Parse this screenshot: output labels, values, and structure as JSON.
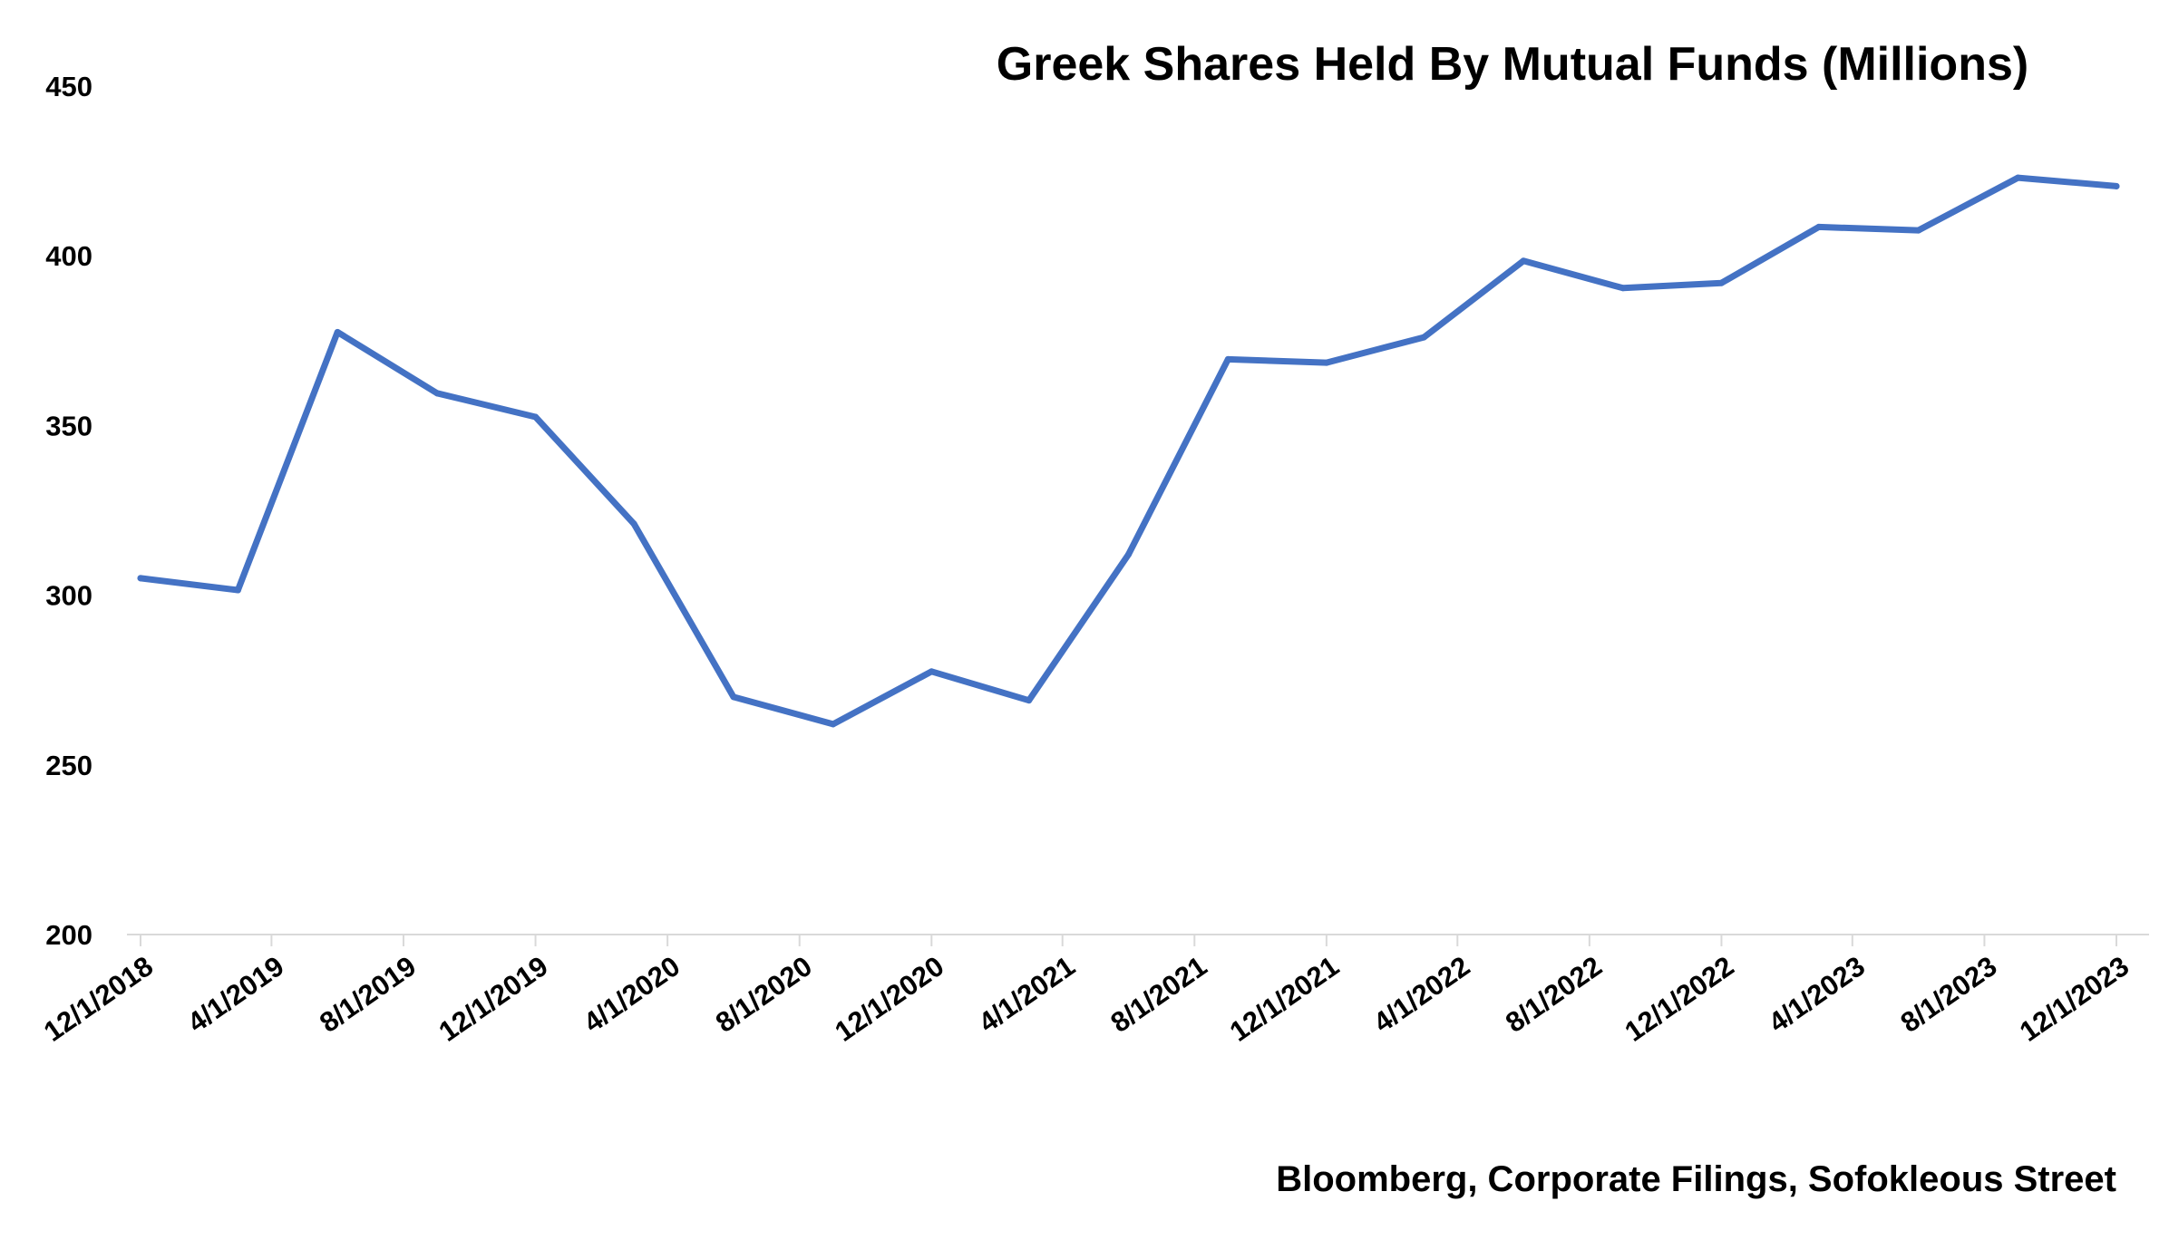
{
  "chart_data": {
    "type": "line",
    "title": "Greek Shares Held By Mutual Funds (Millions)",
    "source": "Bloomberg, Corporate Filings, Sofokleous Street",
    "xlabel": "",
    "ylabel": "",
    "ylim": [
      200,
      450
    ],
    "yticks": [
      200,
      250,
      300,
      350,
      400,
      450
    ],
    "grid": false,
    "legend": "none",
    "tick_labels": [
      "12/1/2018",
      "4/1/2019",
      "8/1/2019",
      "12/1/2019",
      "4/1/2020",
      "8/1/2020",
      "12/1/2020",
      "4/1/2021",
      "8/1/2021",
      "12/1/2021",
      "4/1/2022",
      "8/1/2022",
      "12/1/2022",
      "4/1/2023",
      "8/1/2023",
      "12/1/2023"
    ],
    "x": [
      "2018-12-01",
      "2019-03-01",
      "2019-06-01",
      "2019-09-01",
      "2019-12-01",
      "2020-03-01",
      "2020-06-01",
      "2020-09-01",
      "2020-12-01",
      "2021-03-01",
      "2021-06-01",
      "2021-09-01",
      "2021-12-01",
      "2022-03-01",
      "2022-06-01",
      "2022-09-01",
      "2022-12-01",
      "2023-03-01",
      "2023-06-01",
      "2023-09-01",
      "2023-12-01"
    ],
    "series": [
      {
        "values": [
          305,
          301.5,
          377.5,
          359.5,
          352.5,
          321,
          270,
          262,
          277.5,
          269,
          312,
          369.5,
          368.5,
          376,
          398.5,
          390.5,
          392,
          408.5,
          407.5,
          423,
          420.5
        ],
        "color": "#4472C4"
      }
    ]
  }
}
